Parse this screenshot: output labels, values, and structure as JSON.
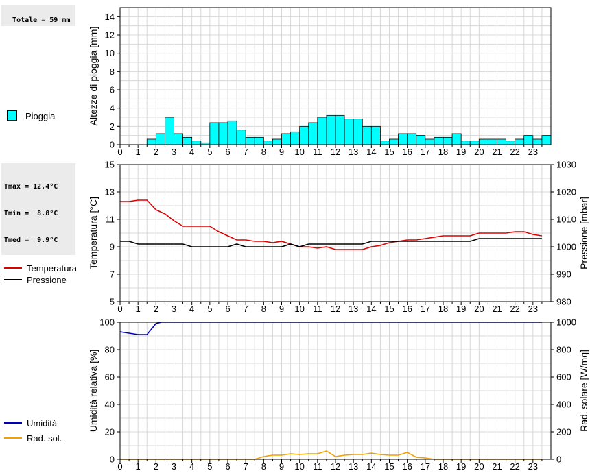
{
  "summary": {
    "rain_total": "Totale = 59 mm",
    "tmax": "Tmax = 12.4°C",
    "tmin": "Tmin =  8.8°C",
    "tmed": "Tmed =  9.9°C"
  },
  "legend": {
    "rain": "Pioggia",
    "temperature": "Temperatura",
    "pressure": "Pressione",
    "humidity": "Umidità",
    "solar": "Rad. sol."
  },
  "colors": {
    "rain_fill": "#00ffff",
    "temperature": "#dd0000",
    "pressure": "#000000",
    "humidity": "#0000bb",
    "solar": "#f0a000",
    "grid": "#d8d8d8"
  },
  "chart_data": [
    {
      "type": "bar",
      "ylabel": "Altezze di pioggia [mm]",
      "xlim": [
        0,
        24
      ],
      "ylim": [
        0,
        15
      ],
      "x_ticks": [
        "0",
        "1",
        "2",
        "3",
        "4",
        "5",
        "6",
        "7",
        "8",
        "9",
        "10",
        "11",
        "12",
        "13",
        "14",
        "15",
        "16",
        "17",
        "18",
        "19",
        "20",
        "21",
        "22",
        "23"
      ],
      "y_ticks": [
        "0",
        "2",
        "4",
        "6",
        "8",
        "10",
        "12",
        "14"
      ],
      "bin_hours": 0.5,
      "values": [
        0,
        0,
        0,
        0.6,
        1.2,
        3.0,
        1.2,
        0.8,
        0.4,
        0.2,
        2.4,
        2.4,
        2.6,
        1.6,
        0.8,
        0.8,
        0.4,
        0.6,
        1.2,
        1.4,
        2.0,
        2.4,
        3.0,
        3.2,
        3.2,
        2.8,
        2.8,
        2.0,
        2.0,
        0.4,
        0.6,
        1.2,
        1.2,
        1.0,
        0.6,
        0.8,
        0.8,
        1.2,
        0.4,
        0.4,
        0.6,
        0.6,
        0.6,
        0.4,
        0.6,
        1.0,
        0.6,
        1.0
      ],
      "legend": [
        "Pioggia"
      ],
      "grid": true
    },
    {
      "type": "line",
      "ylabel": "Temperatura [°C]",
      "y2label": "Pressione [mbar]",
      "xlim": [
        0,
        24
      ],
      "ylim": [
        5,
        15
      ],
      "y2lim": [
        980,
        1030
      ],
      "x_ticks": [
        "0",
        "1",
        "2",
        "3",
        "4",
        "5",
        "6",
        "7",
        "8",
        "9",
        "10",
        "11",
        "12",
        "13",
        "14",
        "15",
        "16",
        "17",
        "18",
        "19",
        "20",
        "21",
        "22",
        "23"
      ],
      "y_ticks": [
        "5",
        "7",
        "9",
        "11",
        "13",
        "15"
      ],
      "y2_ticks": [
        "980",
        "990",
        "1000",
        "1010",
        "1020",
        "1030"
      ],
      "series": [
        {
          "name": "Temperatura",
          "axis": "left",
          "x": [
            0,
            0.5,
            1,
            1.5,
            2,
            2.5,
            3,
            3.5,
            4,
            4.5,
            5,
            5.5,
            6,
            6.5,
            7,
            7.5,
            8,
            8.5,
            9,
            9.5,
            10,
            10.5,
            11,
            11.5,
            12,
            12.5,
            13,
            13.5,
            14,
            14.5,
            15,
            15.5,
            16,
            16.5,
            17,
            17.5,
            18,
            18.5,
            19,
            19.5,
            20,
            20.5,
            21,
            21.5,
            22,
            22.5,
            23,
            23.5
          ],
          "y": [
            12.3,
            12.3,
            12.4,
            12.4,
            11.7,
            11.4,
            10.9,
            10.5,
            10.5,
            10.5,
            10.5,
            10.1,
            9.8,
            9.5,
            9.5,
            9.4,
            9.4,
            9.3,
            9.4,
            9.2,
            9.0,
            9.0,
            8.9,
            9.0,
            8.8,
            8.8,
            8.8,
            8.8,
            9.0,
            9.1,
            9.3,
            9.4,
            9.5,
            9.5,
            9.6,
            9.7,
            9.8,
            9.8,
            9.8,
            9.8,
            10.0,
            10.0,
            10.0,
            10.0,
            10.1,
            10.1,
            9.9,
            9.8
          ]
        },
        {
          "name": "Pressione",
          "axis": "right",
          "x": [
            0,
            0.5,
            1,
            1.5,
            2,
            2.5,
            3,
            3.5,
            4,
            4.5,
            5,
            5.5,
            6,
            6.5,
            7,
            7.5,
            8,
            8.5,
            9,
            9.5,
            10,
            10.5,
            11,
            11.5,
            12,
            12.5,
            13,
            13.5,
            14,
            14.5,
            15,
            15.5,
            16,
            16.5,
            17,
            17.5,
            18,
            18.5,
            19,
            19.5,
            20,
            20.5,
            21,
            21.5,
            22,
            22.5,
            23,
            23.5
          ],
          "y": [
            1002,
            1002,
            1001,
            1001,
            1001,
            1001,
            1001,
            1001,
            1000,
            1000,
            1000,
            1000,
            1000,
            1001,
            1000,
            1000,
            1000,
            1000,
            1000,
            1001,
            1000,
            1001,
            1001,
            1001,
            1001,
            1001,
            1001,
            1001,
            1002,
            1002,
            1002,
            1002,
            1002,
            1002,
            1002,
            1002,
            1002,
            1002,
            1002,
            1002,
            1003,
            1003,
            1003,
            1003,
            1003,
            1003,
            1003,
            1003
          ]
        }
      ],
      "grid": true
    },
    {
      "type": "line",
      "ylabel": "Umidità relativa [%]",
      "y2label": "Rad. solare [W/mq]",
      "xlim": [
        0,
        24
      ],
      "ylim": [
        0,
        100
      ],
      "y2lim": [
        0,
        1000
      ],
      "x_ticks": [
        "0",
        "1",
        "2",
        "3",
        "4",
        "5",
        "6",
        "7",
        "8",
        "9",
        "10",
        "11",
        "12",
        "13",
        "14",
        "15",
        "16",
        "17",
        "18",
        "19",
        "20",
        "21",
        "22",
        "23"
      ],
      "y_ticks": [
        "0",
        "20",
        "40",
        "60",
        "80",
        "100"
      ],
      "y2_ticks": [
        "0",
        "200",
        "400",
        "600",
        "800",
        "1000"
      ],
      "series": [
        {
          "name": "Umidità",
          "axis": "left",
          "x": [
            0,
            0.5,
            1,
            1.5,
            2,
            2.3,
            3,
            4,
            5,
            6,
            7,
            8,
            9,
            10,
            11,
            12,
            13,
            14,
            15,
            16,
            17,
            18,
            19,
            20,
            21,
            22,
            23,
            23.5
          ],
          "y": [
            93,
            92,
            91,
            91,
            99,
            100,
            100,
            100,
            100,
            100,
            100,
            100,
            100,
            100,
            100,
            100,
            100,
            100,
            100,
            100,
            100,
            100,
            100,
            100,
            100,
            100,
            100,
            100
          ]
        },
        {
          "name": "Rad. sol.",
          "axis": "right",
          "x": [
            0,
            7,
            7.5,
            8,
            8.5,
            9,
            9.5,
            10,
            10.5,
            11,
            11.5,
            12,
            12.5,
            13,
            13.5,
            14,
            14.5,
            15,
            15.5,
            16,
            16.5,
            17,
            17.5,
            18,
            23.5
          ],
          "y": [
            0,
            0,
            0,
            20,
            30,
            30,
            40,
            35,
            40,
            40,
            60,
            20,
            30,
            35,
            35,
            45,
            35,
            30,
            30,
            50,
            15,
            10,
            0,
            0,
            0
          ]
        }
      ],
      "grid": true
    }
  ]
}
